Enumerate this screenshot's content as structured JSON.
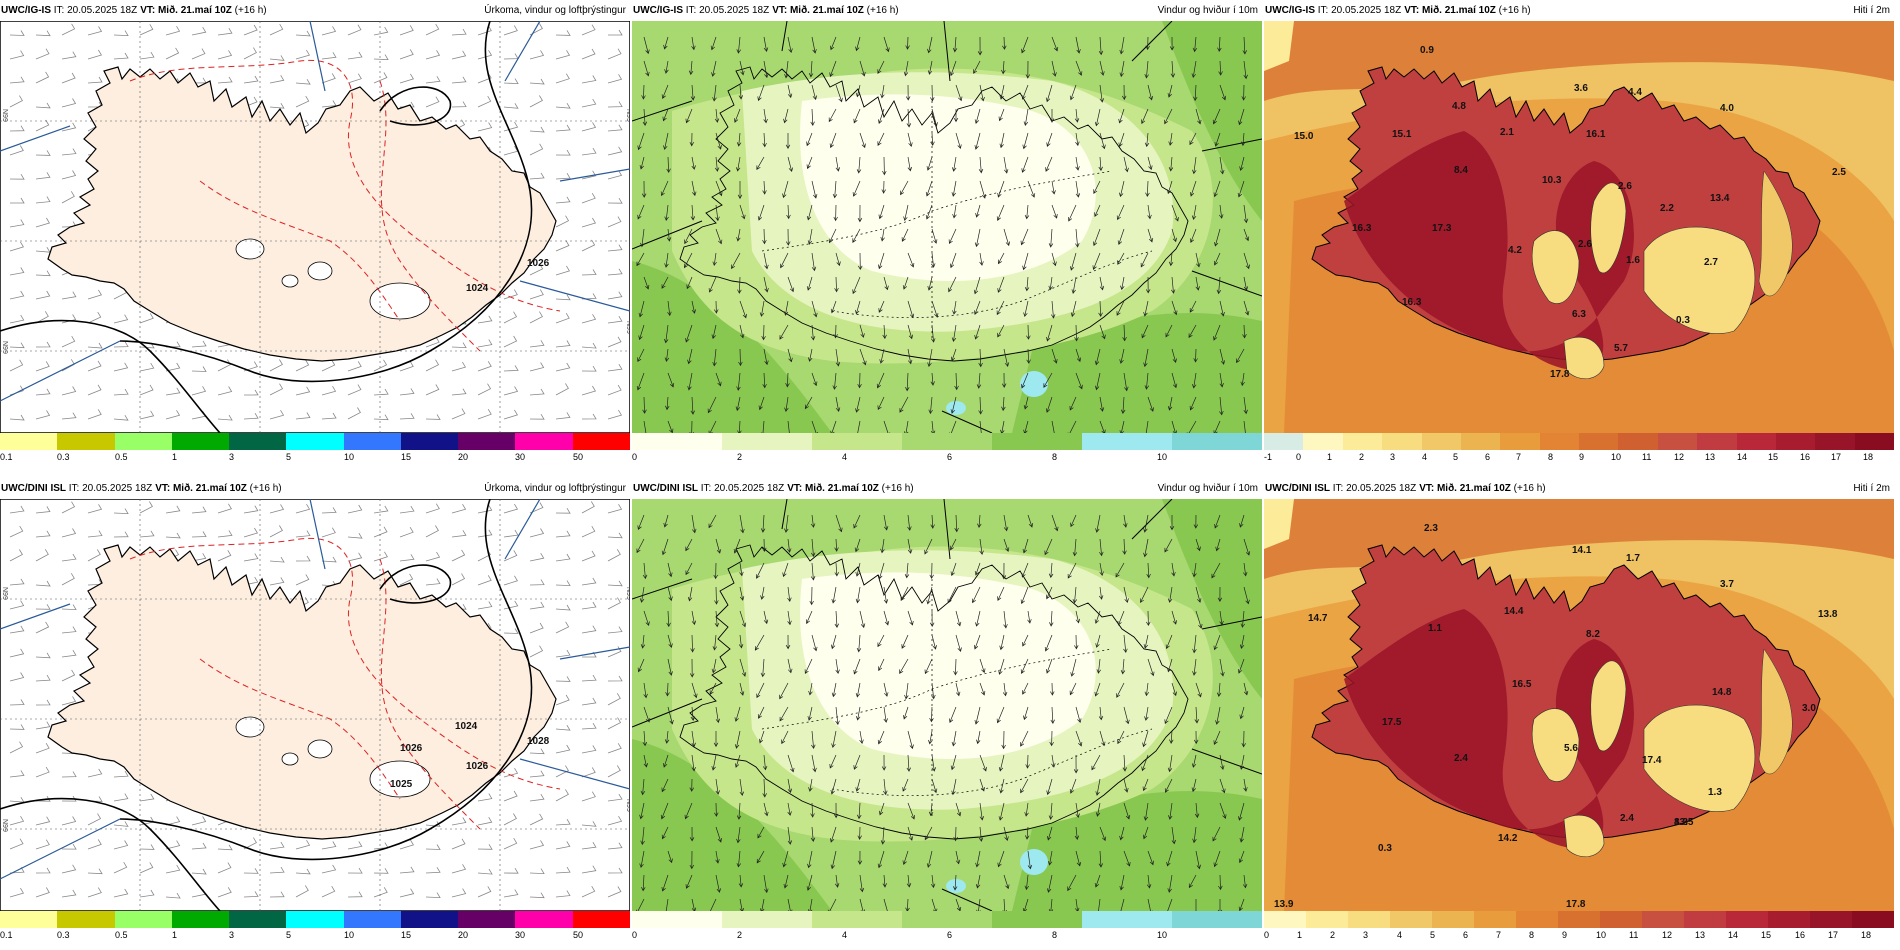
{
  "panels": [
    {
      "id": "p1",
      "source": "UWC/IG-IS",
      "it_label": "IT:",
      "it_value": "20.05.2025 18Z",
      "vt_label": "VT:",
      "vt_value": "Mið. 21.maí 10Z",
      "lead": "(+16 h)",
      "title": "Úrkoma, vindur og loftþrýstingur",
      "kind": "precip",
      "colors": [
        "#ffff99",
        "#c8c800",
        "#99ff66",
        "#00aa00",
        "#006644",
        "#00ffff",
        "#3377ff",
        "#111188",
        "#660066",
        "#ff00aa",
        "#ff0000"
      ],
      "ticks": [
        "0.1",
        "0.3",
        "0.5",
        "1",
        "3",
        "5",
        "10",
        "15",
        "20",
        "30",
        "50"
      ],
      "isobars": [
        "1024",
        "1026"
      ],
      "grid_labels": [
        "N99",
        "N99",
        "N99",
        "N99"
      ]
    },
    {
      "id": "p2",
      "source": "UWC/IG-IS",
      "it_label": "IT:",
      "it_value": "20.05.2025 18Z",
      "vt_label": "VT:",
      "vt_value": "Mið. 21.maí 10Z",
      "lead": "(+16 h)",
      "title": "Vindur og hviður í 10m",
      "kind": "wind",
      "colors": [
        "#ffffee",
        "#e6f5c0",
        "#c6e68c",
        "#a8d870",
        "#88c850",
        "#9ee8f0",
        "#7fd6d6"
      ],
      "ticks": [
        "0",
        "2",
        "4",
        "6",
        "8",
        "10"
      ]
    },
    {
      "id": "p3",
      "source": "UWC/IG-IS",
      "it_label": "IT:",
      "it_value": "20.05.2025 18Z",
      "vt_label": "VT:",
      "vt_value": "Mið. 21.maí 10Z",
      "lead": "(+16 h)",
      "title": "Hiti í 2m",
      "kind": "temp",
      "colors": [
        "#d7ece4",
        "#fff7c0",
        "#fcec9a",
        "#f8dc80",
        "#f0c868",
        "#ecb450",
        "#e89c3c",
        "#e28434",
        "#d87030",
        "#d06030",
        "#c85040",
        "#c03c40",
        "#b82838",
        "#a81c30",
        "#981428",
        "#8a0c20"
      ],
      "ticks": [
        "-1",
        "0",
        "1",
        "2",
        "3",
        "4",
        "5",
        "6",
        "7",
        "8",
        "9",
        "10",
        "11",
        "12",
        "13",
        "14",
        "15",
        "16",
        "17",
        "18"
      ],
      "values": [
        "0.9",
        "4.8",
        "3.6",
        "4.4",
        "4.0",
        "15.0",
        "15.1",
        "2.1",
        "16.1",
        "8.4",
        "10.3",
        "2.6",
        "2.2",
        "13.4",
        "2.5",
        "16.3",
        "17.3",
        "4.2",
        "2.6",
        "1.6",
        "2.7",
        "16.3",
        "6.3",
        "0.3",
        "5.7",
        "17.8"
      ]
    },
    {
      "id": "p4",
      "source": "UWC/DINI ISL",
      "it_label": "IT:",
      "it_value": "20.05.2025 18Z",
      "vt_label": "VT:",
      "vt_value": "Mið. 21.maí 10Z",
      "lead": "(+16 h)",
      "title": "Úrkoma, vindur og loftþrýstingur",
      "kind": "precip",
      "colors": [
        "#ffff99",
        "#c8c800",
        "#99ff66",
        "#00aa00",
        "#006644",
        "#00ffff",
        "#3377ff",
        "#111188",
        "#660066",
        "#ff00aa",
        "#ff0000"
      ],
      "ticks": [
        "0.1",
        "0.3",
        "0.5",
        "1",
        "3",
        "5",
        "10",
        "15",
        "20",
        "30",
        "50"
      ],
      "isobars": [
        "1026",
        "1028",
        "1025",
        "1026",
        "1024"
      ],
      "grid_labels": [
        "N99",
        "N99",
        "N99",
        "N99"
      ]
    },
    {
      "id": "p5",
      "source": "UWC/DINI ISL",
      "it_label": "IT:",
      "it_value": "20.05.2025 18Z",
      "vt_label": "VT:",
      "vt_value": "Mið. 21.maí 10Z",
      "lead": "(+16 h)",
      "title": "Vindur og hviður í 10m",
      "kind": "wind",
      "colors": [
        "#ffffee",
        "#e6f5c0",
        "#c6e68c",
        "#a8d870",
        "#88c850",
        "#9ee8f0",
        "#7fd6d6"
      ],
      "ticks": [
        "0",
        "2",
        "4",
        "6",
        "8",
        "10"
      ]
    },
    {
      "id": "p6",
      "source": "UWC/DINI ISL",
      "it_label": "IT:",
      "it_value": "20.05.2025 18Z",
      "vt_label": "VT:",
      "vt_value": "Mið. 21.maí 10Z",
      "lead": "(+16 h)",
      "title": "Hiti í 2m",
      "kind": "temp",
      "colors": [
        "#fff7c0",
        "#fcec9a",
        "#f8dc80",
        "#f0c868",
        "#ecb450",
        "#e89c3c",
        "#e28434",
        "#d87030",
        "#d06030",
        "#c85040",
        "#c03c40",
        "#b82838",
        "#a81c30",
        "#981428",
        "#8a0c20"
      ],
      "ticks": [
        "0",
        "1",
        "2",
        "3",
        "4",
        "5",
        "6",
        "7",
        "8",
        "9",
        "10",
        "11",
        "12",
        "13",
        "14",
        "15",
        "16",
        "17",
        "18"
      ],
      "values": [
        "2.3",
        "14.1",
        "1.7",
        "3.7",
        "13.8",
        "14.7",
        "1.1",
        "14.4",
        "8.2",
        "16.5",
        "14.8",
        "3.0",
        "17.5",
        "2.4",
        "5.6",
        "17.4",
        "1.3",
        "2.4",
        "13.5",
        "0.3",
        "14.2",
        "17.8",
        "13.9",
        "8.3"
      ]
    }
  ]
}
